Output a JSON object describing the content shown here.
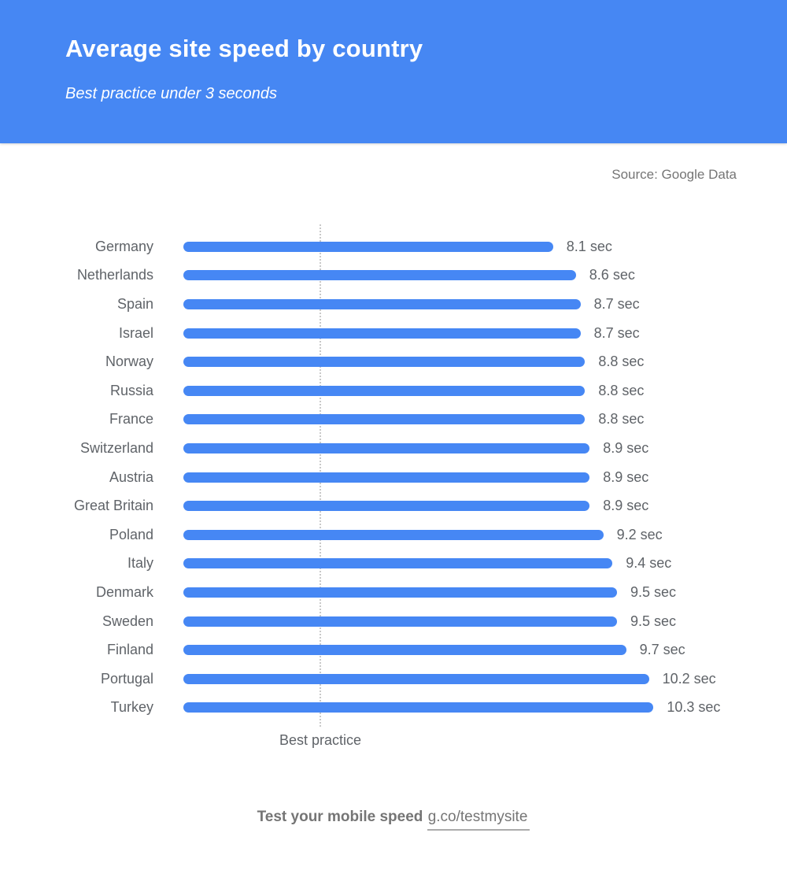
{
  "header": {
    "title": "Average site speed by country",
    "subtitle": "Best practice under 3 seconds",
    "bg_color": "#4687f3",
    "text_color": "#ffffff"
  },
  "source": {
    "label": "Source: Google Data"
  },
  "chart_data": {
    "type": "bar",
    "orientation": "horizontal",
    "title": "Average site speed by country",
    "subtitle": "Best practice under 3 seconds",
    "unit": "sec",
    "categories": [
      "Germany",
      "Netherlands",
      "Spain",
      "Israel",
      "Norway",
      "Russia",
      "France",
      "Switzerland",
      "Austria",
      "Great Britain",
      "Poland",
      "Italy",
      "Denmark",
      "Sweden",
      "Finland",
      "Portugal",
      "Turkey"
    ],
    "values": [
      8.1,
      8.6,
      8.7,
      8.7,
      8.8,
      8.8,
      8.8,
      8.9,
      8.9,
      8.9,
      9.2,
      9.4,
      9.5,
      9.5,
      9.7,
      10.2,
      10.3
    ],
    "value_labels": [
      "8.1 sec",
      "8.6 sec",
      "8.7 sec",
      "8.7 sec",
      "8.8 sec",
      "8.8 sec",
      "8.8 sec",
      "8.9 sec",
      "8.9 sec",
      "8.9 sec",
      "9.2 sec",
      "9.4 sec",
      "9.5 sec",
      "9.5 sec",
      "9.7 sec",
      "10.2 sec",
      "10.3 sec"
    ],
    "xlim": [
      0,
      10.3
    ],
    "grid": false,
    "bar_color": "#4687f4",
    "label_color": "#5f6368",
    "reference_line": {
      "value": 3,
      "label": "Best practice",
      "style": "dotted"
    }
  },
  "footer": {
    "cta": "Test your mobile speed",
    "link": "g.co/testmysite"
  }
}
